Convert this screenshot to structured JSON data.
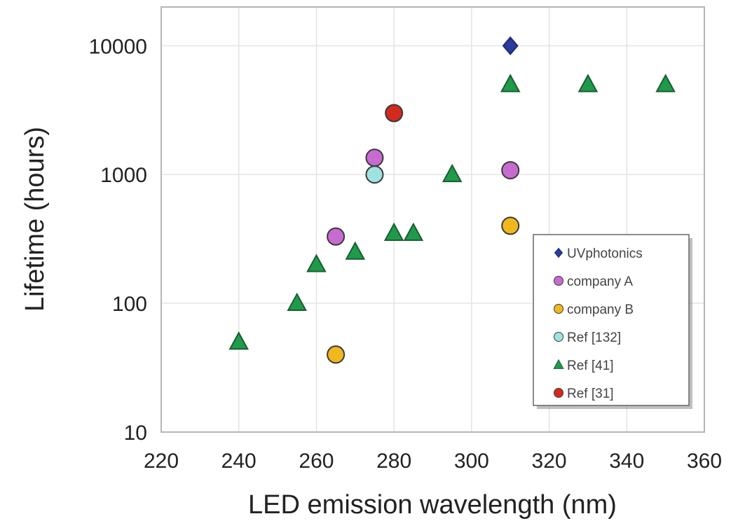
{
  "chart_data": {
    "type": "scatter",
    "title": "",
    "xlabel": "LED emission wavelength (nm)",
    "ylabel": "Lifetime (hours)",
    "xlim": [
      220,
      360
    ],
    "ylim": [
      10,
      20000
    ],
    "yscale": "log",
    "x_ticks": [
      220,
      240,
      260,
      280,
      300,
      320,
      340,
      360
    ],
    "y_ticks": [
      10,
      100,
      1000,
      10000
    ],
    "x_tick_labels": [
      "220",
      "240",
      "260",
      "280",
      "300",
      "320",
      "340",
      "360"
    ],
    "y_tick_labels": [
      "10",
      "100",
      "1000",
      "10000"
    ],
    "grid": true,
    "legend_position": "bottom-right",
    "series": [
      {
        "name": "UVphotonics",
        "marker": "diamond",
        "color": "#2b3a9c",
        "points": [
          [
            310,
            10000
          ]
        ]
      },
      {
        "name": "company A",
        "marker": "circle",
        "color": "#c86bd0",
        "points": [
          [
            265,
            330
          ],
          [
            275,
            1350
          ],
          [
            310,
            1080
          ]
        ]
      },
      {
        "name": "company B",
        "marker": "circle",
        "color": "#f0b81c",
        "points": [
          [
            265,
            40
          ],
          [
            310,
            400
          ]
        ]
      },
      {
        "name": "Ref [132]",
        "marker": "circle",
        "color": "#9fe3e0",
        "points": [
          [
            275,
            1000
          ]
        ]
      },
      {
        "name": "Ref [41]",
        "marker": "triangle",
        "color": "#1f9a4b",
        "points": [
          [
            240,
            50
          ],
          [
            255,
            100
          ],
          [
            260,
            200
          ],
          [
            270,
            250
          ],
          [
            280,
            350
          ],
          [
            285,
            350
          ],
          [
            295,
            1000
          ],
          [
            310,
            5000
          ],
          [
            330,
            5000
          ],
          [
            350,
            5000
          ]
        ]
      },
      {
        "name": "Ref [31]",
        "marker": "circle",
        "color": "#d42a1e",
        "points": [
          [
            280,
            3000
          ]
        ]
      }
    ]
  }
}
